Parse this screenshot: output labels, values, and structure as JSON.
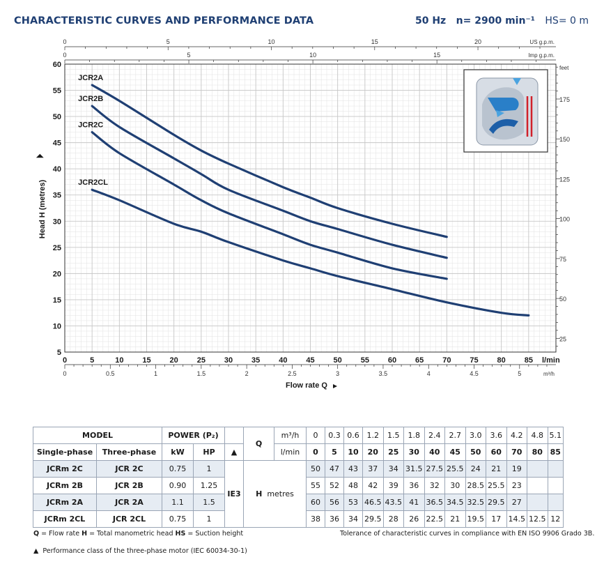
{
  "header": {
    "title": "CHARACTERISTIC CURVES AND PERFORMANCE DATA",
    "freq": "50 Hz",
    "speed": "n= 2900 min⁻¹",
    "suction": "HS= 0 m"
  },
  "chart_data": {
    "type": "line",
    "xlabel": "Flow rate Q",
    "ylabel": "Head H (metres)",
    "xlim": [
      0,
      90
    ],
    "ylim": [
      5,
      60
    ],
    "grid": true,
    "x_unit": "l/min",
    "x_ticks": [
      0,
      5,
      10,
      15,
      20,
      25,
      30,
      35,
      40,
      45,
      50,
      55,
      60,
      65,
      70,
      75,
      80,
      85
    ],
    "y_ticks": [
      5,
      10,
      15,
      20,
      25,
      30,
      35,
      40,
      45,
      50,
      55,
      60
    ],
    "secondary_axes": {
      "us_gpm": {
        "unit": "US g.p.m.",
        "ticks": [
          "0",
          "5",
          "10",
          "15",
          "20"
        ]
      },
      "imp_gpm": {
        "unit": "Imp g.p.m.",
        "ticks": [
          "0",
          "5",
          "10",
          "15"
        ]
      },
      "m3h": {
        "unit": "m³/h",
        "ticks": [
          "0",
          "0.5",
          "1",
          "1.5",
          "2",
          "2.5",
          "3",
          "3.5",
          "4",
          "4.5",
          "5"
        ]
      },
      "feet": {
        "unit": "feet",
        "ticks": [
          "25",
          "50",
          "75",
          "100",
          "125",
          "150",
          "175"
        ]
      }
    },
    "series": [
      {
        "name": "JCR2A",
        "x": [
          5,
          10,
          20,
          25,
          30,
          40,
          45,
          50,
          60,
          70
        ],
        "y": [
          56,
          53,
          46.5,
          43.5,
          41,
          36.5,
          34.5,
          32.5,
          29.5,
          27
        ]
      },
      {
        "name": "JCR2B",
        "x": [
          5,
          10,
          20,
          25,
          30,
          40,
          45,
          50,
          60,
          70
        ],
        "y": [
          52,
          48,
          42,
          39,
          36,
          32,
          30,
          28.5,
          25.5,
          23
        ]
      },
      {
        "name": "JCR2C",
        "x": [
          5,
          10,
          20,
          25,
          30,
          40,
          45,
          50,
          60,
          70
        ],
        "y": [
          47,
          43,
          37,
          34,
          31.5,
          27.5,
          25.5,
          24,
          21,
          19
        ]
      },
      {
        "name": "JCR2CL",
        "x": [
          5,
          10,
          20,
          25,
          30,
          40,
          45,
          50,
          60,
          70,
          80,
          85
        ],
        "y": [
          36,
          34,
          29.5,
          28,
          26,
          22.5,
          21,
          19.5,
          17,
          14.5,
          12.5,
          12
        ]
      }
    ]
  },
  "table": {
    "model_label": "MODEL",
    "power_label": "POWER (P₂)",
    "single_phase": "Single-phase",
    "three_phase": "Three-phase",
    "kw": "kW",
    "hp": "HP",
    "q_label": "Q",
    "m3h_label": "m³/h",
    "lmin_label": "l/min",
    "ie3": "IE3",
    "h_label": "H",
    "metres": "metres",
    "q_m3h": [
      "0",
      "0.3",
      "0.6",
      "1.2",
      "1.5",
      "1.8",
      "2.4",
      "2.7",
      "3.0",
      "3.6",
      "4.2",
      "4.8",
      "5.1"
    ],
    "q_lmin": [
      "0",
      "5",
      "10",
      "20",
      "25",
      "30",
      "40",
      "45",
      "50",
      "60",
      "70",
      "80",
      "85"
    ],
    "rows": [
      {
        "single": "JCRm 2C",
        "three": "JCR 2C",
        "kw": "0.75",
        "hp": "1",
        "h": [
          "50",
          "47",
          "43",
          "37",
          "34",
          "31.5",
          "27.5",
          "25.5",
          "24",
          "21",
          "19",
          "",
          ""
        ]
      },
      {
        "single": "JCRm 2B",
        "three": "JCR 2B",
        "kw": "0.90",
        "hp": "1.25",
        "h": [
          "55",
          "52",
          "48",
          "42",
          "39",
          "36",
          "32",
          "30",
          "28.5",
          "25.5",
          "23",
          "",
          ""
        ]
      },
      {
        "single": "JCRm 2A",
        "three": "JCR 2A",
        "kw": "1.1",
        "hp": "1.5",
        "h": [
          "60",
          "56",
          "53",
          "46.5",
          "43.5",
          "41",
          "36.5",
          "34.5",
          "32.5",
          "29.5",
          "27",
          "",
          ""
        ]
      },
      {
        "single": "JCRm 2CL",
        "three": "JCR 2CL",
        "kw": "0.75",
        "hp": "1",
        "h": [
          "38",
          "36",
          "34",
          "29.5",
          "28",
          "26",
          "22.5",
          "21",
          "19.5",
          "17",
          "14.5",
          "12.5",
          "12"
        ]
      }
    ]
  },
  "notes": {
    "q": "Q",
    "q_desc": " = Flow rate  ",
    "h": "H",
    "h_desc": " = Total manometric head  ",
    "hs": "HS",
    "hs_desc": " = Suction height",
    "tolerance": "Tolerance of characteristic curves in compliance with EN ISO 9906 Grado 3B.",
    "footnote": "Performance class of the three-phase motor (IEC 60034-30-1)"
  },
  "colors": {
    "curve": "#1f3f73",
    "grid": "#c7c7c7",
    "title": "#1f3f73",
    "shade": "#e6ecf3"
  }
}
